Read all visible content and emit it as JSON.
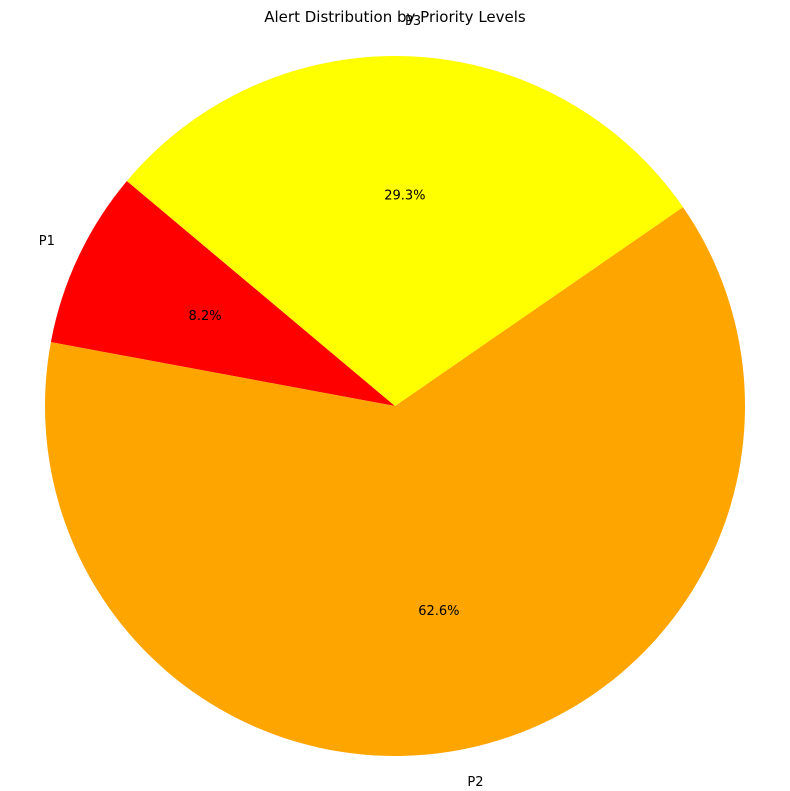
{
  "chart_data": {
    "type": "pie",
    "title": "Alert Distribution by Priority Levels",
    "slices": [
      {
        "label": "P1",
        "value": 8.2,
        "pct_label": "8.2%",
        "color": "#ff0000"
      },
      {
        "label": "P2",
        "value": 62.6,
        "pct_label": "62.6%",
        "color": "#ffa500"
      },
      {
        "label": "P3",
        "value": 29.3,
        "pct_label": "29.3%",
        "color": "#ffff00"
      }
    ],
    "start_angle_deg": 140,
    "direction": "counterclockwise",
    "legend": "none"
  }
}
